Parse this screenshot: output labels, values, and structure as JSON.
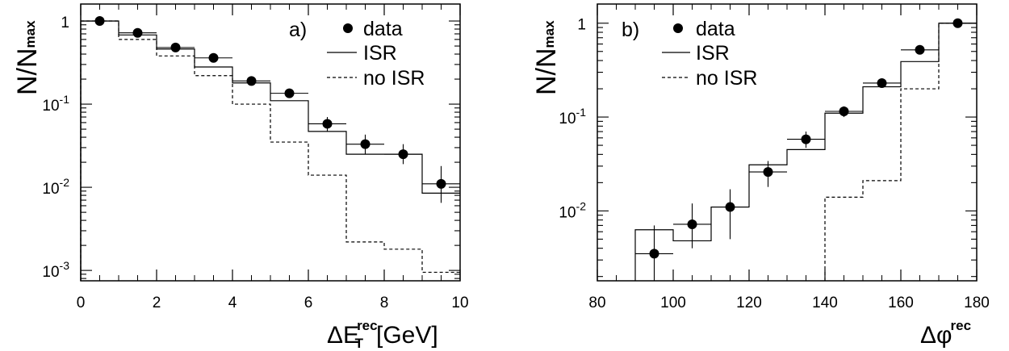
{
  "chart_data": [
    {
      "type": "scatter",
      "panel_label": "a)",
      "ylabel": "N/N",
      "ylabel_sub": "max",
      "xlabel": "ΔE",
      "xlabel_sup": "rec",
      "xlabel_sub": "T",
      "xlabel_unit": "[GeV]",
      "xlim": [
        0,
        10
      ],
      "ylim": [
        0.00075,
        1.6
      ],
      "yscale": "log",
      "x_ticks": [
        "0",
        "2",
        "4",
        "6",
        "8",
        "10"
      ],
      "y_ticks": [
        {
          "value": 1,
          "base": "1",
          "exp": ""
        },
        {
          "value": 0.1,
          "base": "10",
          "exp": "-1"
        },
        {
          "value": 0.01,
          "base": "10",
          "exp": "-2"
        },
        {
          "value": 0.001,
          "base": "10",
          "exp": "-3"
        }
      ],
      "legend": {
        "placement": "top-right",
        "entries": [
          "data",
          "ISR",
          "no ISR"
        ]
      },
      "series": [
        {
          "name": "data",
          "style": "points",
          "x": [
            0.5,
            1.5,
            2.5,
            3.5,
            4.5,
            5.5,
            6.5,
            7.5,
            8.5,
            9.5
          ],
          "y": [
            1.0,
            0.72,
            0.48,
            0.36,
            0.19,
            0.135,
            0.058,
            0.033,
            0.025,
            0.011
          ],
          "y_low": [
            0.96,
            0.69,
            0.45,
            0.33,
            0.175,
            0.12,
            0.047,
            0.025,
            0.019,
            0.0065
          ],
          "y_high": [
            1.04,
            0.75,
            0.51,
            0.39,
            0.205,
            0.15,
            0.07,
            0.043,
            0.033,
            0.018
          ]
        },
        {
          "name": "ISR",
          "style": "solid-histogram",
          "bin_edges": [
            0,
            1,
            2,
            3,
            4,
            5,
            6,
            7,
            8,
            9,
            10
          ],
          "values": [
            1.0,
            0.68,
            0.46,
            0.28,
            0.18,
            0.11,
            0.047,
            0.025,
            0.025,
            0.0085
          ]
        },
        {
          "name": "no ISR",
          "style": "dashed-histogram",
          "bin_edges": [
            0,
            1,
            2,
            3,
            4,
            5,
            6,
            7,
            8,
            9,
            10
          ],
          "values": [
            1.0,
            0.6,
            0.38,
            0.22,
            0.1,
            0.035,
            0.014,
            0.0022,
            0.0018,
            0.00095
          ]
        }
      ]
    },
    {
      "type": "scatter",
      "panel_label": "b)",
      "ylabel": "N/N",
      "ylabel_sub": "max",
      "xlabel": "Δφ",
      "xlabel_sup": "rec",
      "xlim": [
        80,
        180
      ],
      "ylim": [
        0.0018,
        1.6
      ],
      "yscale": "log",
      "x_ticks": [
        "80",
        "100",
        "120",
        "140",
        "160",
        "180"
      ],
      "y_ticks": [
        {
          "value": 1,
          "base": "1",
          "exp": ""
        },
        {
          "value": 0.1,
          "base": "10",
          "exp": "-1"
        },
        {
          "value": 0.01,
          "base": "10",
          "exp": "-2"
        }
      ],
      "legend": {
        "placement": "top-left",
        "entries": [
          "data",
          "ISR",
          "no ISR"
        ]
      },
      "series": [
        {
          "name": "data",
          "style": "points",
          "x": [
            95,
            105,
            115,
            125,
            135,
            145,
            155,
            165,
            175
          ],
          "y": [
            0.0035,
            0.0072,
            0.011,
            0.026,
            0.058,
            0.115,
            0.23,
            0.52,
            1.0
          ],
          "y_low": [
            0.0018,
            0.004,
            0.005,
            0.018,
            0.047,
            0.1,
            0.21,
            0.48,
            0.96
          ],
          "y_high": [
            0.007,
            0.012,
            0.017,
            0.034,
            0.07,
            0.13,
            0.25,
            0.56,
            1.04
          ]
        },
        {
          "name": "ISR",
          "style": "solid-histogram",
          "bin_edges": [
            90,
            100,
            110,
            120,
            130,
            140,
            150,
            160,
            170,
            180
          ],
          "values": [
            0.0063,
            0.0048,
            0.011,
            0.031,
            0.045,
            0.11,
            0.21,
            0.39,
            1.0
          ]
        },
        {
          "name": "no ISR",
          "style": "dashed-histogram",
          "bin_edges": [
            140,
            150,
            160,
            170,
            180
          ],
          "values": [
            0.014,
            0.021,
            0.2,
            1.0
          ]
        }
      ]
    }
  ]
}
